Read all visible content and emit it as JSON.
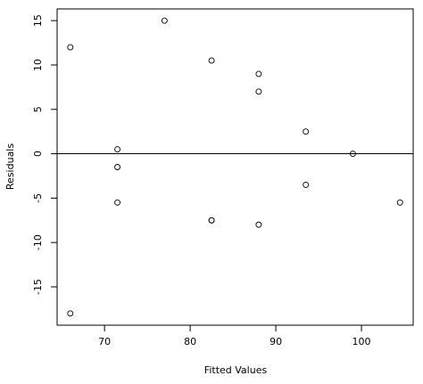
{
  "chart_data": {
    "type": "scatter",
    "xlabel": "Fitted Values",
    "ylabel": "Residuals",
    "x": [
      66,
      66,
      71.5,
      71.5,
      71.5,
      77,
      82.5,
      82.5,
      82.5,
      88,
      88,
      88,
      93.5,
      93.5,
      99,
      104.5
    ],
    "values": [
      12,
      -18,
      0.5,
      -1.5,
      -5.5,
      15,
      10.5,
      -7.5,
      -7.5,
      9,
      7,
      -8,
      2.5,
      -3.5,
      0,
      -5.5
    ],
    "color": "#000000",
    "xlim": [
      64.46,
      106.04
    ],
    "xticks": [
      70,
      80,
      90,
      100
    ],
    "ylim": [
      -19.32,
      16.32
    ],
    "yticks": [
      -15,
      -10,
      -5,
      0,
      5,
      10,
      15
    ],
    "hline": 0
  }
}
